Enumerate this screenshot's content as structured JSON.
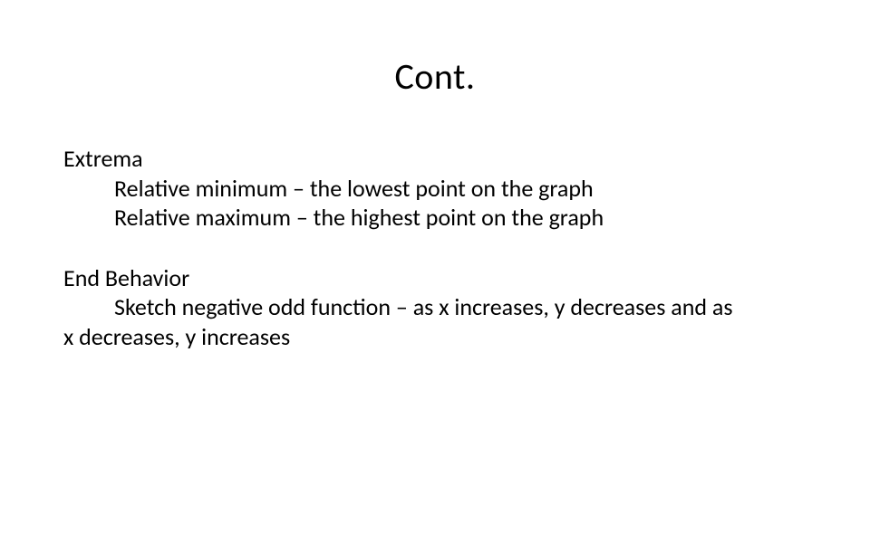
{
  "slide": {
    "title": "Cont.",
    "section1": {
      "heading": "Extrema",
      "line1": "Relative minimum – the lowest point on the graph",
      "line2": "Relative maximum – the highest point on the graph"
    },
    "section2": {
      "heading": "End Behavior",
      "line1_indent": "Sketch negative odd function – as x increases, y decreases and as",
      "line1_wrap": "x decreases, y increases"
    }
  },
  "style": {
    "background_color": "#ffffff",
    "text_color": "#000000",
    "title_fontsize": 40,
    "body_fontsize": 26,
    "font_family": "Calibri",
    "title_weight": 400
  }
}
